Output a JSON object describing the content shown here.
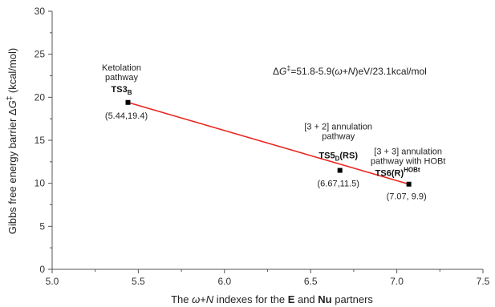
{
  "chart_data": {
    "type": "scatter",
    "title": "",
    "xlabel": {
      "prefix": "The ",
      "omega": "ω",
      "plus": "+",
      "N": "N",
      "middle": " indexes for the ",
      "E": "E",
      "and": " and ",
      "Nu": "Nu",
      "suffix": " partners"
    },
    "ylabel": {
      "prefix": "Gibbs free energy barrier ",
      "delta": "Δ",
      "G": "G",
      "dagger": "‡",
      "unit": " (kcal/mol)"
    },
    "xlim": [
      5.0,
      7.5
    ],
    "ylim": [
      0,
      30
    ],
    "xticks": [
      "5.0",
      "5.5",
      "6.0",
      "6.5",
      "7.0",
      "7.5"
    ],
    "yticks": [
      "0",
      "5",
      "10",
      "15",
      "20",
      "25",
      "30"
    ],
    "points": [
      {
        "x": 5.44,
        "y": 19.4,
        "coord_label": "(5.44,19.4)",
        "pathway_lines": [
          "Ketolation",
          "pathway"
        ],
        "ts_main": "TS3",
        "ts_sub": "B",
        "ts_sup": "",
        "ts_tail": ""
      },
      {
        "x": 6.67,
        "y": 11.5,
        "coord_label": "(6.67,11.5)",
        "pathway_lines": [
          "[3 + 2] annulation",
          "pathway"
        ],
        "ts_main": "TS5",
        "ts_sub": "D",
        "ts_sup": "",
        "ts_tail": "(RS)"
      },
      {
        "x": 7.07,
        "y": 9.9,
        "coord_label": "(7.07, 9.9)",
        "pathway_lines": [
          "[3 + 3] annulation",
          "pathway with HOBt"
        ],
        "ts_main": "TS6(R)",
        "ts_sub": "",
        "ts_sup": "HOBt",
        "ts_tail": ""
      }
    ],
    "fit_line": {
      "x": [
        5.44,
        7.07
      ],
      "y": [
        19.4,
        9.9
      ],
      "color": "#e8251f"
    },
    "equation": {
      "delta": "Δ",
      "G": "G",
      "dagger": "‡",
      "part1": "=51.8-5.9(",
      "omega": "ω",
      "plus": "+",
      "N": "N",
      "part2": ")eV/23.1kcal/mol"
    },
    "grid": false,
    "marker_color": "#000000",
    "axis_color": "#555555"
  }
}
